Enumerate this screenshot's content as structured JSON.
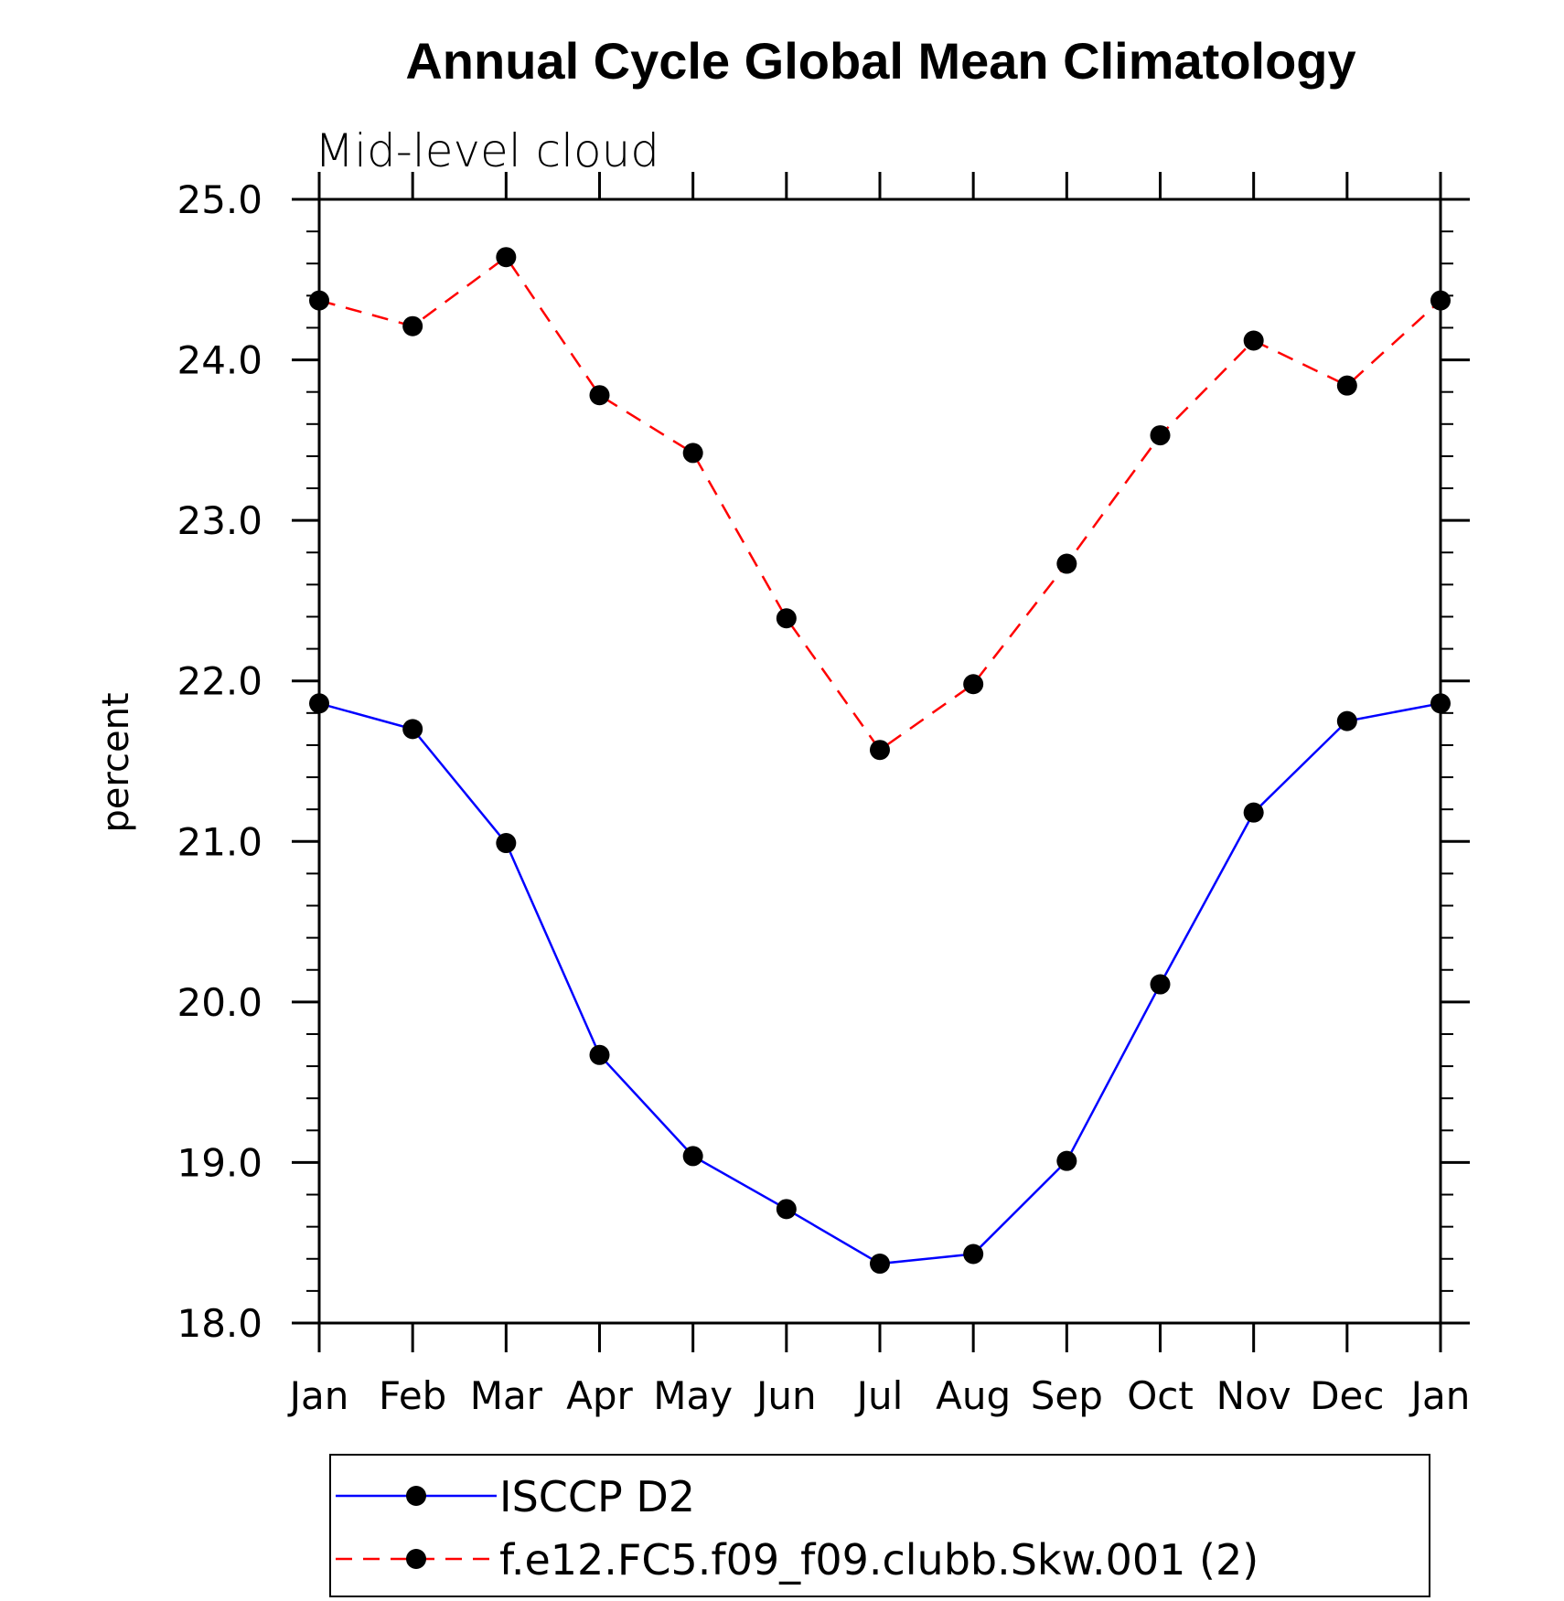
{
  "chart_data": {
    "type": "line",
    "title": "Annual Cycle Global Mean Climatology",
    "subtitle": "Mid-level cloud",
    "ylabel": "percent",
    "xlabel": "",
    "categories": [
      "Jan",
      "Feb",
      "Mar",
      "Apr",
      "May",
      "Jun",
      "Jul",
      "Aug",
      "Sep",
      "Oct",
      "Nov",
      "Dec",
      "Jan"
    ],
    "ylim": [
      18.0,
      25.0
    ],
    "yticks": [
      "18.0",
      "19.0",
      "20.0",
      "21.0",
      "22.0",
      "23.0",
      "24.0",
      "25.0"
    ],
    "grid": false,
    "legend_position": "bottom",
    "series": [
      {
        "name": "ISCCP D2",
        "color": "#0000ff",
        "dash": "solid",
        "values": [
          21.86,
          21.7,
          20.99,
          19.67,
          19.04,
          18.71,
          18.37,
          18.43,
          19.01,
          20.11,
          21.18,
          21.75,
          21.86
        ]
      },
      {
        "name": "f.e12.FC5.f09_f09.clubb.Skw.001 (2)",
        "color": "#ff0000",
        "dash": "dashed",
        "values": [
          24.37,
          24.21,
          24.64,
          23.78,
          23.42,
          22.39,
          21.57,
          21.98,
          22.73,
          23.53,
          24.12,
          23.84,
          24.37
        ]
      }
    ]
  }
}
